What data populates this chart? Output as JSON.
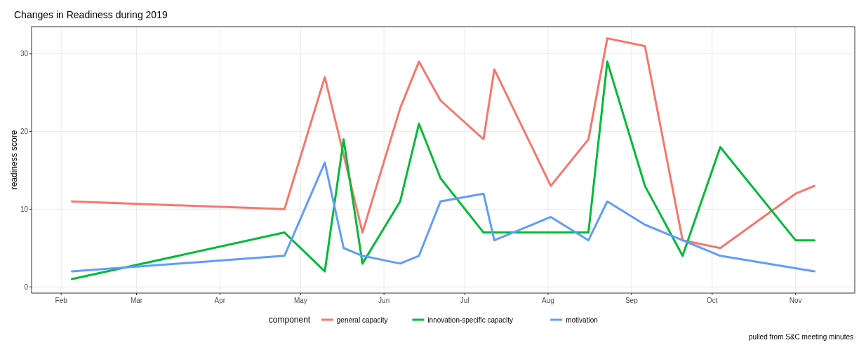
{
  "chart_data": {
    "type": "line",
    "title": "Changes in Readiness during 2019",
    "ylabel": "readiness score",
    "legend_title": "component",
    "legend": "bottom",
    "grid": true,
    "line_style": "solid",
    "annotations": [
      "pulled from S&C meeting minutes"
    ],
    "xlim": [
      "2019-01-21",
      "2019-11-23"
    ],
    "xticks": [
      {
        "value": "2019-02-01",
        "label": "Feb"
      },
      {
        "value": "2019-03-01",
        "label": "Mar"
      },
      {
        "value": "2019-04-01",
        "label": "Apr"
      },
      {
        "value": "2019-05-01",
        "label": "May"
      },
      {
        "value": "2019-06-01",
        "label": "Jun"
      },
      {
        "value": "2019-07-01",
        "label": "Jul"
      },
      {
        "value": "2019-08-01",
        "label": "Aug"
      },
      {
        "value": "2019-09-01",
        "label": "Sep"
      },
      {
        "value": "2019-10-01",
        "label": "Oct"
      },
      {
        "value": "2019-11-01",
        "label": "Nov"
      }
    ],
    "ylim": [
      -0.8,
      33.5
    ],
    "yticks": [
      0,
      10,
      20,
      30
    ],
    "series": [
      {
        "name": "general capacity",
        "color": "#f8766d",
        "x": [
          "2019-02-05",
          "2019-04-25",
          "2019-05-10",
          "2019-05-24",
          "2019-06-07",
          "2019-06-14",
          "2019-06-22",
          "2019-07-08",
          "2019-07-12",
          "2019-08-02",
          "2019-08-16",
          "2019-08-23",
          "2019-09-06",
          "2019-09-20",
          "2019-10-04",
          "2019-11-01",
          "2019-11-08"
        ],
        "values": [
          11,
          10,
          27,
          7,
          23,
          29,
          24,
          19,
          28,
          13,
          19,
          32,
          31,
          6,
          5,
          12,
          13
        ]
      },
      {
        "name": "innovation-specific capacity",
        "color": "#00ba38",
        "x": [
          "2019-02-05",
          "2019-04-25",
          "2019-05-10",
          "2019-05-17",
          "2019-05-24",
          "2019-06-07",
          "2019-06-14",
          "2019-06-22",
          "2019-07-08",
          "2019-07-12",
          "2019-08-02",
          "2019-08-16",
          "2019-08-23",
          "2019-09-06",
          "2019-09-20",
          "2019-10-04",
          "2019-11-01",
          "2019-11-08"
        ],
        "values": [
          1,
          7,
          2,
          19,
          3,
          11,
          21,
          14,
          7,
          7,
          7,
          7,
          29,
          13,
          4,
          18,
          6,
          6
        ]
      },
      {
        "name": "motivation",
        "color": "#619cff",
        "x": [
          "2019-02-05",
          "2019-04-25",
          "2019-05-10",
          "2019-05-17",
          "2019-05-24",
          "2019-06-07",
          "2019-06-14",
          "2019-06-22",
          "2019-07-08",
          "2019-07-12",
          "2019-08-02",
          "2019-08-16",
          "2019-08-23",
          "2019-09-06",
          "2019-09-20",
          "2019-10-04",
          "2019-11-08"
        ],
        "values": [
          2,
          4,
          16,
          5,
          4,
          3,
          4,
          11,
          12,
          6,
          9,
          6,
          11,
          8,
          6,
          4,
          2
        ]
      }
    ]
  }
}
